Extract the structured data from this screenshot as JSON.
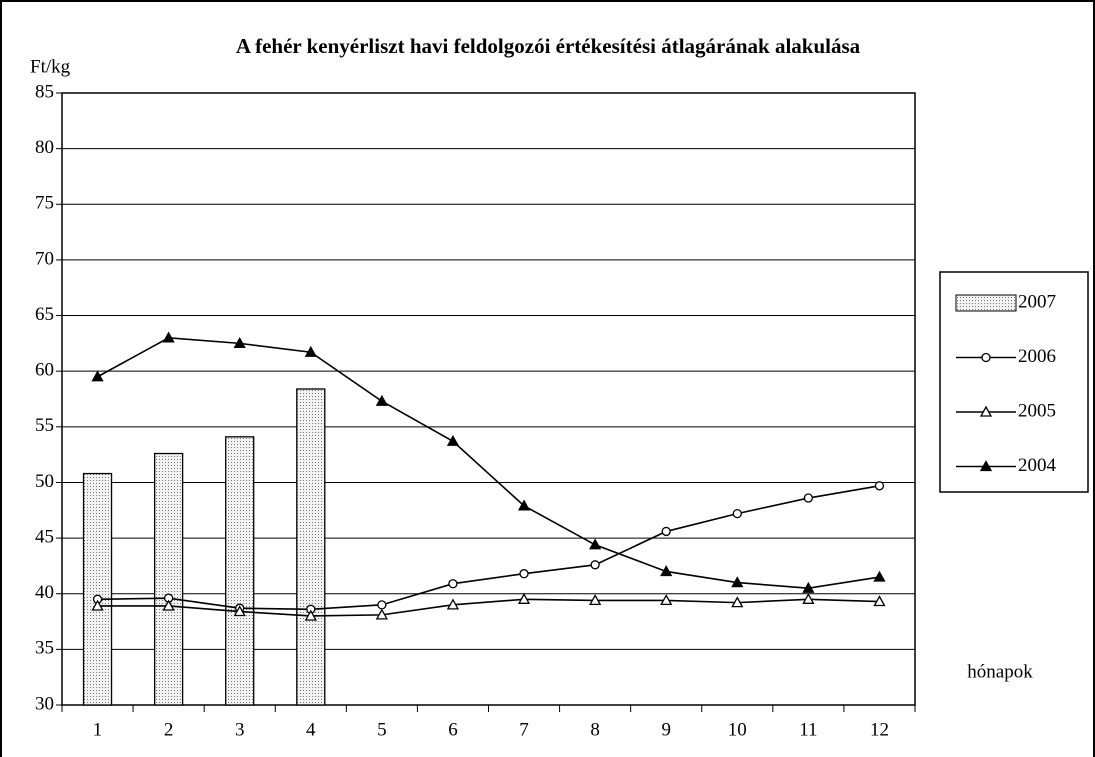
{
  "chart_data": {
    "type": "bar",
    "title": "A fehér kenyérliszt havi feldolgozói értékesítési átlagárának alakulása",
    "y_label": "Ft/kg",
    "x_label": "hónapok",
    "categories": [
      "1",
      "2",
      "3",
      "4",
      "5",
      "6",
      "7",
      "8",
      "9",
      "10",
      "11",
      "12"
    ],
    "ylim": [
      30,
      85
    ],
    "yticks": [
      30,
      35,
      40,
      45,
      50,
      55,
      60,
      65,
      70,
      75,
      80,
      85
    ],
    "grid": true,
    "legend": "right",
    "series": [
      {
        "name": "2007",
        "type": "bar",
        "color": "#d9d9d9",
        "values": [
          50.8,
          52.6,
          54.1,
          58.4,
          null,
          null,
          null,
          null,
          null,
          null,
          null,
          null
        ]
      },
      {
        "name": "2006",
        "type": "line",
        "marker": "circle",
        "marker_fill": "#ffffff",
        "color": "#000000",
        "values": [
          39.5,
          39.6,
          38.7,
          38.6,
          39.0,
          40.9,
          41.8,
          42.6,
          45.6,
          47.2,
          48.6,
          49.7
        ]
      },
      {
        "name": "2005",
        "type": "line",
        "marker": "triangle",
        "marker_fill": "#ffffff",
        "color": "#000000",
        "values": [
          38.9,
          38.9,
          38.4,
          38.0,
          38.1,
          39.0,
          39.5,
          39.4,
          39.4,
          39.2,
          39.5,
          39.3
        ]
      },
      {
        "name": "2004",
        "type": "line",
        "marker": "triangle",
        "marker_fill": "#000000",
        "color": "#000000",
        "values": [
          59.5,
          63.0,
          62.5,
          61.7,
          57.3,
          53.7,
          47.9,
          44.4,
          42.0,
          41.0,
          40.5,
          41.5
        ]
      }
    ]
  }
}
